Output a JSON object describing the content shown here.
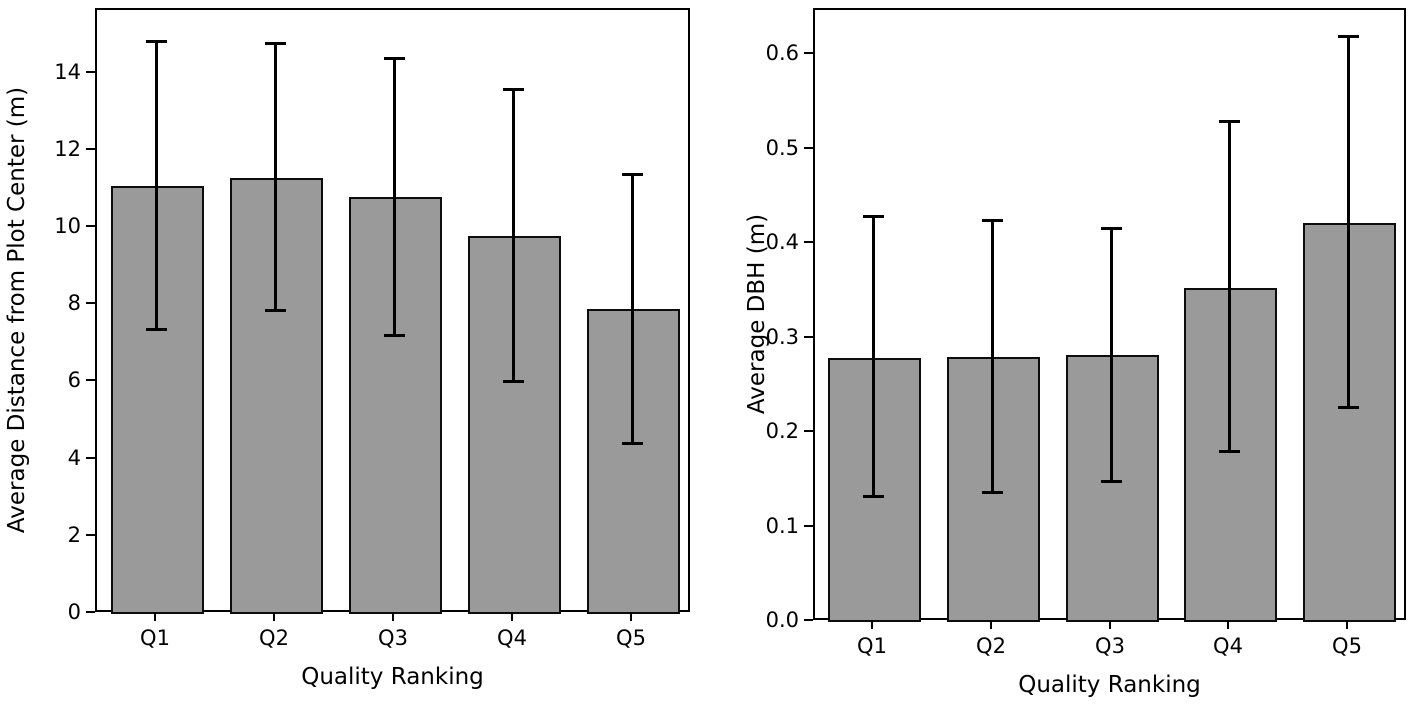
{
  "figure": {
    "background_color": "#ffffff",
    "bar_fill_color": "#9a9a9a",
    "bar_edge_color": "#0d0d0d",
    "error_bar_color": "#000000",
    "text_color": "#000000"
  },
  "chart_data": [
    {
      "type": "bar",
      "title": "",
      "xlabel": "Quality Ranking",
      "ylabel": "Average Distance from Plot Center (m)",
      "categories": [
        "Q1",
        "Q2",
        "Q3",
        "Q4",
        "Q5"
      ],
      "values": [
        11.1,
        11.3,
        10.8,
        9.8,
        7.9
      ],
      "error_upper": [
        14.85,
        14.8,
        14.4,
        13.6,
        11.4
      ],
      "error_lower": [
        7.35,
        7.85,
        7.2,
        6.0,
        4.4
      ],
      "ylim": [
        0,
        15.65
      ],
      "yticks": [
        0,
        2,
        4,
        6,
        8,
        10,
        12,
        14
      ],
      "ytick_labels": [
        "0",
        "2",
        "4",
        "6",
        "8",
        "10",
        "12",
        "14"
      ],
      "grid": false,
      "legend_position": "none"
    },
    {
      "type": "bar",
      "title": "",
      "xlabel": "Quality Ranking",
      "ylabel": "Average DBH (m)",
      "categories": [
        "Q1",
        "Q2",
        "Q3",
        "Q4",
        "Q5"
      ],
      "values": [
        0.28,
        0.281,
        0.283,
        0.354,
        0.422
      ],
      "error_upper": [
        0.43,
        0.426,
        0.417,
        0.53,
        0.62
      ],
      "error_lower": [
        0.132,
        0.137,
        0.148,
        0.18,
        0.227
      ],
      "ylim": [
        0,
        0.648
      ],
      "yticks": [
        0.0,
        0.1,
        0.2,
        0.3,
        0.4,
        0.5,
        0.6
      ],
      "ytick_labels": [
        "0.0",
        "0.1",
        "0.2",
        "0.3",
        "0.4",
        "0.5",
        "0.6"
      ],
      "grid": false,
      "legend_position": "none"
    }
  ]
}
